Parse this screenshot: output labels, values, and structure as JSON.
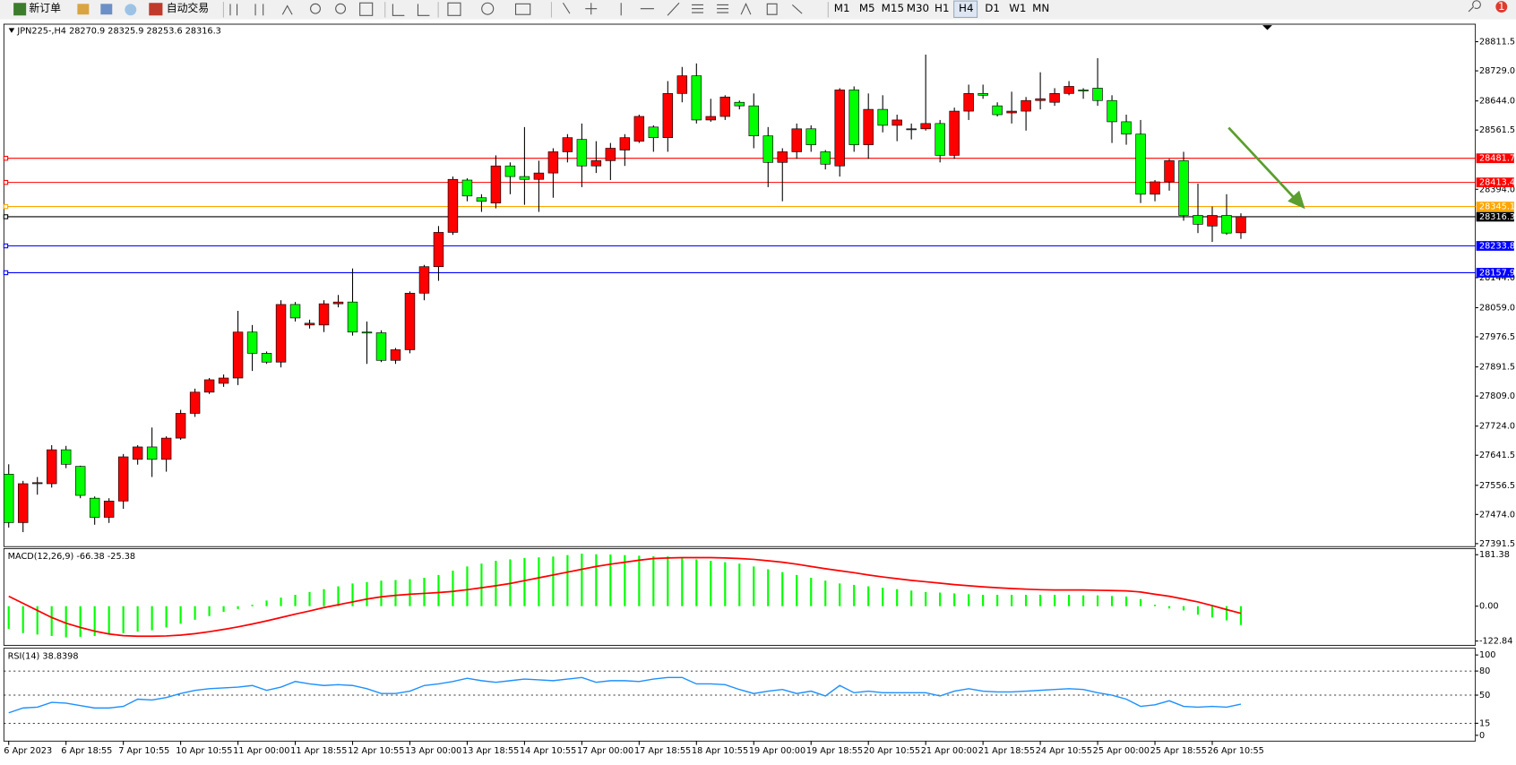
{
  "toolbar": {
    "new_order": "新订单",
    "auto_trading": "自动交易",
    "timeframes": [
      "M1",
      "M5",
      "M15",
      "M30",
      "H1",
      "H4",
      "D1",
      "W1",
      "MN"
    ],
    "notifications": "1"
  },
  "chart_data": [
    {
      "type": "candlestick",
      "title": "JPN225-,H4",
      "up_color": "#ff0000",
      "down_color": "#00ff00",
      "categories": [
        "6 Apr 2023",
        null,
        null,
        null,
        "6 Apr 18:55",
        null,
        null,
        null,
        "7 Apr 10:55",
        null,
        null,
        null,
        "10 Apr 10:55",
        null,
        null,
        null,
        "11 Apr 00:00",
        null,
        null,
        null,
        "11 Apr 18:55",
        null,
        null,
        null,
        "12 Apr 10:55",
        null,
        null,
        null,
        "13 Apr 00:00",
        null,
        null,
        null,
        "13 Apr 18:55",
        null,
        null,
        null,
        "14 Apr 10:55",
        null,
        null,
        null,
        "17 Apr 00:00",
        null,
        null,
        null,
        "17 Apr 18:55",
        null,
        null,
        null,
        "18 Apr 10:55",
        null,
        null,
        null,
        "19 Apr 00:00",
        null,
        null,
        null,
        "19 Apr 18:55",
        null,
        null,
        null,
        "20 Apr 10:55",
        null,
        null,
        null,
        "21 Apr 00:00",
        null,
        null,
        null,
        "21 Apr 18:55",
        null,
        null,
        null,
        "24 Apr 10:55",
        null,
        null,
        null,
        "25 Apr 00:00",
        null,
        null,
        null,
        "25 Apr 18:55",
        null,
        null,
        null,
        "26 Apr 10:55",
        null,
        null
      ],
      "open": [
        27588,
        27451,
        27561,
        27561,
        27657,
        27610,
        27520,
        27466,
        27512,
        27630,
        27665,
        27630,
        27690,
        27760,
        27820,
        27845,
        27860,
        27990,
        27930,
        27905,
        28068,
        28010,
        28010,
        28070,
        28075,
        27990,
        27988,
        27910,
        27940,
        28100,
        28175,
        28272,
        28420,
        28370,
        28355,
        28460,
        28430,
        28422,
        28440,
        28500,
        28535,
        28460,
        28475,
        28505,
        28530,
        28570,
        28540,
        28665,
        28715,
        28590,
        28600,
        28640,
        28630,
        28545,
        28470,
        28500,
        28565,
        28500,
        28460,
        28675,
        28520,
        28620,
        28575,
        28565,
        28565,
        28580,
        28490,
        28615,
        28665,
        28630,
        28610,
        28615,
        28645,
        28640,
        28665,
        28675,
        28680,
        28645,
        28585,
        28550,
        28380,
        28415,
        28475,
        28320,
        28290,
        28320,
        28270.9
      ],
      "high": [
        27616,
        27569,
        27580,
        27670,
        27668,
        27612,
        27525,
        27520,
        27645,
        27670,
        27720,
        27695,
        27770,
        27830,
        27860,
        27870,
        28050,
        28010,
        27935,
        28080,
        28075,
        28025,
        28080,
        28095,
        28170,
        28020,
        27995,
        27945,
        28105,
        28180,
        28290,
        28430,
        28425,
        28380,
        28490,
        28470,
        28570,
        28475,
        28510,
        28550,
        28580,
        28530,
        28525,
        28550,
        28605,
        28575,
        28700,
        28740,
        28750,
        28650,
        28660,
        28645,
        28665,
        28570,
        28510,
        28580,
        28575,
        28505,
        28680,
        28685,
        28665,
        28660,
        28605,
        28580,
        28775,
        28590,
        28625,
        28690,
        28690,
        28640,
        28670,
        28655,
        28725,
        28680,
        28700,
        28680,
        28765,
        28660,
        28605,
        28590,
        28420,
        28480,
        28500,
        28410,
        28345,
        28380,
        28325.9
      ],
      "low": [
        27437,
        27424,
        27530,
        27550,
        27605,
        27520,
        27445,
        27450,
        27490,
        27615,
        27580,
        27595,
        27685,
        27750,
        27815,
        27835,
        27840,
        27880,
        27900,
        27890,
        28020,
        28000,
        27990,
        28060,
        27980,
        27900,
        27905,
        27900,
        27930,
        28080,
        28135,
        28265,
        28360,
        28330,
        28340,
        28380,
        28350,
        28330,
        28370,
        28470,
        28400,
        28440,
        28420,
        28460,
        28525,
        28500,
        28500,
        28640,
        28580,
        28585,
        28590,
        28620,
        28510,
        28400,
        28360,
        28480,
        28500,
        28450,
        28430,
        28500,
        28480,
        28555,
        28530,
        28535,
        28560,
        28470,
        28480,
        28590,
        28650,
        28600,
        28580,
        28560,
        28620,
        28630,
        28660,
        28650,
        28630,
        28525,
        28520,
        28355,
        28360,
        28390,
        28305,
        28270,
        28245,
        28265,
        28253.6
      ],
      "close": [
        27451,
        27561,
        27564,
        27657,
        27616,
        27528,
        27466,
        27512,
        27637,
        27665,
        27630,
        27690,
        27760,
        27820,
        27855,
        27860,
        27990,
        27930,
        27905,
        28068,
        28030,
        28015,
        28070,
        28075,
        27990,
        27988,
        27910,
        27940,
        28100,
        28175,
        28272,
        28422,
        28375,
        28360,
        28460,
        28430,
        28422,
        28440,
        28500,
        28540,
        28460,
        28475,
        28510,
        28540,
        28600,
        28540,
        28665,
        28715,
        28590,
        28600,
        28655,
        28630,
        28545,
        28470,
        28500,
        28565,
        28520,
        28465,
        28675,
        28520,
        28620,
        28575,
        28590,
        28565,
        28580,
        28490,
        28615,
        28665,
        28660,
        28605,
        28615,
        28645,
        28650,
        28665,
        28685,
        28672,
        28645,
        28585,
        28550,
        28380,
        28415,
        28475,
        28320,
        28295,
        28320,
        28270,
        28316.3
      ],
      "levels": [
        {
          "value": 28481.7,
          "color": "#ff0000"
        },
        {
          "value": 28413.4,
          "color": "#ff0000"
        },
        {
          "value": 28345.1,
          "color": "#ffa500"
        },
        {
          "value": 28316.3,
          "color": "#000000"
        },
        {
          "value": 28233.8,
          "color": "#0000ff"
        },
        {
          "value": 28157.9,
          "color": "#0000ff"
        }
      ],
      "ylim": [
        27383,
        28861
      ],
      "yticks": [
        28811.5,
        {
          "value": 28729,
          "label": "28729.0"
        },
        {
          "value": 28644,
          "label": "28644.0"
        },
        28561.5,
        {
          "value": 28394,
          "label": "28394.0"
        },
        {
          "value": 28144,
          "label": "28144.0"
        },
        {
          "value": 28059,
          "label": "28059.0"
        },
        27976.5,
        27891.5,
        {
          "value": 27809,
          "label": "27809.0"
        },
        {
          "value": 27724,
          "label": "27724.0"
        },
        27641.5,
        27556.5,
        {
          "value": 27474,
          "label": "27474.0"
        },
        27391.5
      ]
    },
    {
      "type": "macd",
      "title": "MACD(12,26,9)",
      "histogram": {
        "color": "#00ff00",
        "values": [
          -80,
          -95,
          -100,
          -105,
          -110,
          -108,
          -105,
          -100,
          -95,
          -90,
          -85,
          -75,
          -62,
          -48,
          -35,
          -20,
          -10,
          5,
          20,
          30,
          40,
          50,
          60,
          70,
          80,
          85,
          90,
          92,
          95,
          100,
          110,
          125,
          140,
          150,
          160,
          165,
          170,
          172,
          175,
          180,
          185,
          183,
          182,
          180,
          178,
          176,
          175,
          170,
          165,
          160,
          155,
          150,
          140,
          130,
          120,
          110,
          100,
          90,
          80,
          75,
          70,
          65,
          60,
          55,
          50,
          48,
          45,
          42,
          40,
          40,
          40,
          40,
          40,
          40,
          40,
          38,
          38,
          36,
          34,
          25,
          5,
          -8,
          -15,
          -30,
          -40,
          -50,
          -66.38
        ]
      },
      "signal": {
        "color": "#ff0000",
        "values": [
          35,
          10,
          -15,
          -40,
          -60,
          -75,
          -88,
          -98,
          -104,
          -106,
          -106,
          -105,
          -102,
          -97,
          -90,
          -82,
          -73,
          -63,
          -52,
          -40,
          -28,
          -17,
          -5,
          5,
          15,
          25,
          33,
          38,
          42,
          45,
          48,
          52,
          58,
          65,
          72,
          80,
          90,
          100,
          110,
          120,
          130,
          140,
          148,
          155,
          162,
          168,
          170,
          171,
          171,
          171,
          170,
          168,
          165,
          160,
          155,
          148,
          140,
          132,
          125,
          118,
          110,
          103,
          97,
          91,
          86,
          81,
          76,
          72,
          68,
          65,
          62,
          60,
          58,
          57,
          57,
          57,
          56,
          55,
          54,
          50,
          42,
          35,
          25,
          15,
          2,
          -12,
          -25.38
        ]
      },
      "ylim": [
        -138,
        203
      ],
      "yticks": [
        181.38,
        {
          "value": 0,
          "label": "0.00"
        },
        -122.84
      ]
    },
    {
      "type": "line",
      "title": "RSI(14)",
      "color": "#1e90ff",
      "grid": true,
      "values": [
        28,
        34,
        35,
        41,
        40,
        37,
        34,
        34,
        36,
        45,
        44,
        47,
        52,
        56,
        58,
        59,
        60,
        62,
        56,
        60,
        67,
        64,
        62,
        63,
        62,
        58,
        52,
        52,
        55,
        62,
        64,
        67,
        71,
        68,
        66,
        68,
        70,
        69,
        68,
        70,
        72,
        66,
        68,
        68,
        67,
        70,
        72,
        72,
        64,
        64,
        63,
        57,
        52,
        55,
        57,
        52,
        55,
        49,
        62,
        53,
        55,
        53,
        53,
        53,
        53,
        49,
        55,
        58,
        55,
        54,
        54,
        55,
        56,
        57,
        58,
        57,
        53,
        50,
        45,
        36,
        38,
        43,
        36,
        35,
        36,
        35,
        38.8398
      ],
      "ylim": [
        -7.2,
        108.4
      ],
      "yticks": [
        100,
        80,
        50,
        15,
        0
      ]
    }
  ]
}
